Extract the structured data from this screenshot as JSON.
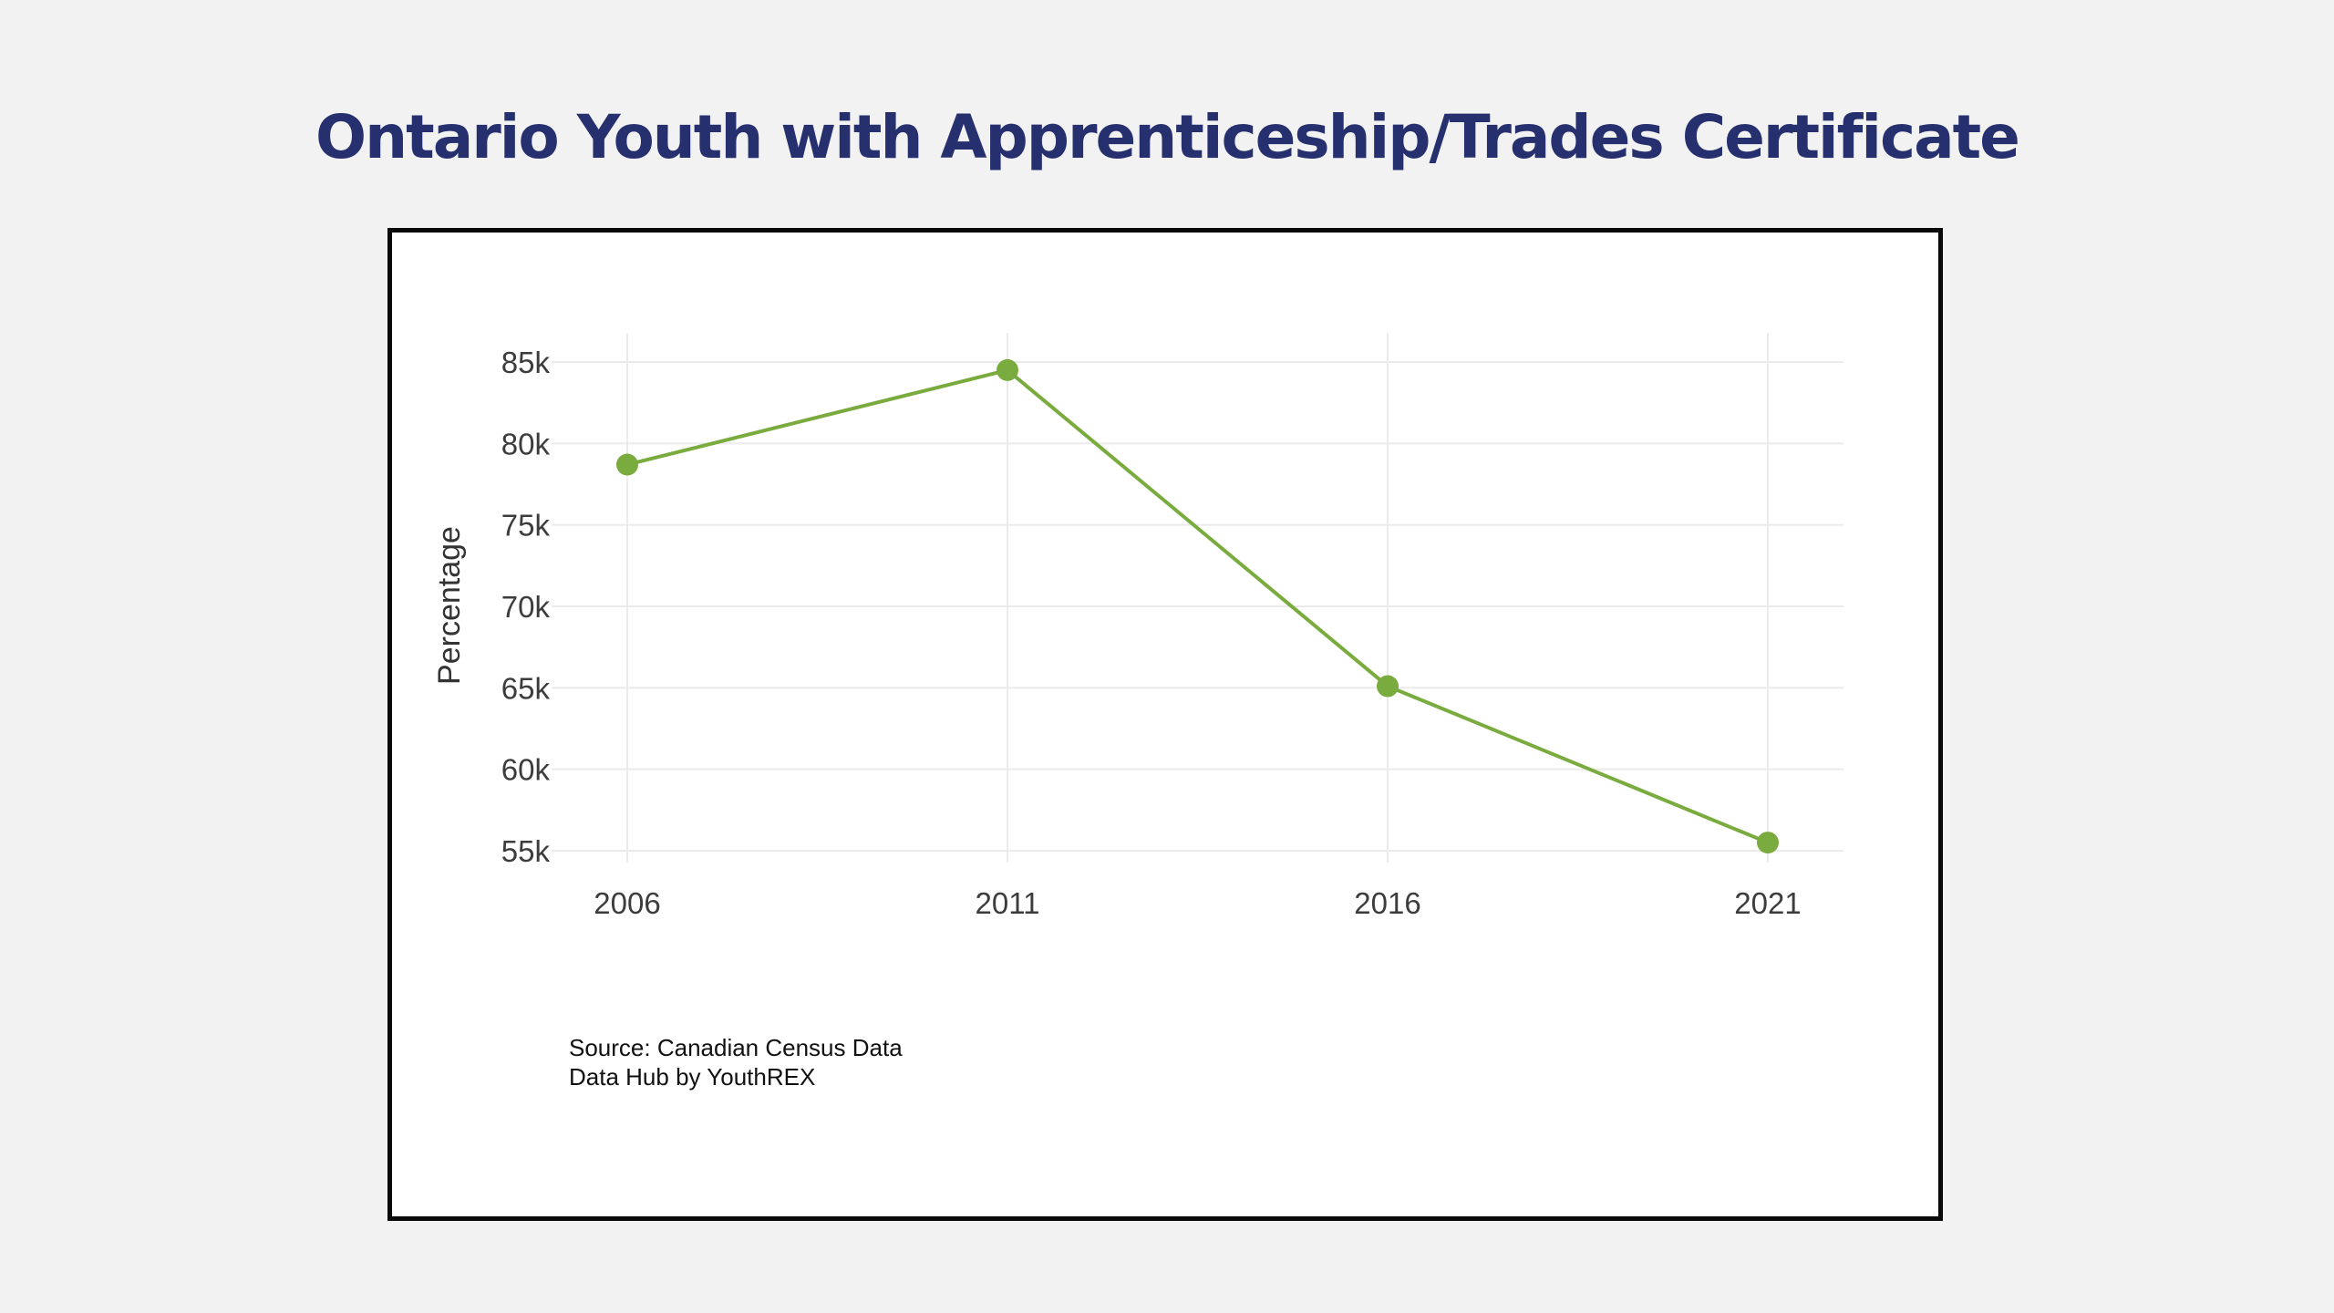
{
  "title": "Ontario Youth with Apprenticeship/Trades Certificate",
  "source": {
    "line1": "Source: Canadian Census Data",
    "line2": "Data Hub by YouthREX"
  },
  "colors": {
    "title": "#26306e",
    "series": "#7aab3e",
    "grid": "#ebebeb",
    "background": "#f2f2f2",
    "plot_background": "#ffffff"
  },
  "chart_data": {
    "type": "line",
    "title": "Ontario Youth with Apprenticeship/Trades Certificate",
    "xlabel": "",
    "ylabel": "Percentage",
    "categories": [
      "2006",
      "2011",
      "2016",
      "2021"
    ],
    "values": [
      78700,
      84500,
      65100,
      55500
    ],
    "ylim": [
      55000,
      85000
    ],
    "yticks": [
      55000,
      60000,
      65000,
      70000,
      75000,
      80000,
      85000
    ],
    "ytick_labels": [
      "55k",
      "60k",
      "65k",
      "70k",
      "75k",
      "80k",
      "85k"
    ],
    "grid": true,
    "legend": "none",
    "markers": true
  }
}
